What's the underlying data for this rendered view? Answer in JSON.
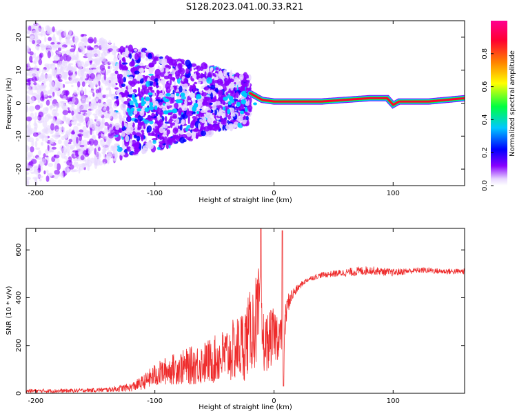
{
  "title": "S128.2023.041.00.33.R21",
  "colors": {
    "snr_line": "#ee2a2a",
    "axis": "#000000",
    "band_center": "#e8283a",
    "band_edge": "#00e060"
  },
  "chart_data": [
    {
      "type": "heatmap",
      "xlabel": "Height of straight line (km)",
      "ylabel": "Frequency (Hz)",
      "xlim": [
        -208,
        160
      ],
      "ylim": [
        -25,
        25
      ],
      "xticks": [
        -200,
        -100,
        0,
        100
      ],
      "yticks": [
        -20,
        -10,
        0,
        10,
        20
      ],
      "grid": false,
      "colorbar": {
        "label": "Normalized spectral amplitude",
        "range": [
          0,
          1
        ],
        "ticks": [
          0.0,
          0.2,
          0.4,
          0.6,
          0.8
        ],
        "colormap": [
          "#ffffff",
          "#e8d8ff",
          "#8800ff",
          "#0000ff",
          "#00c8ff",
          "#00ff40",
          "#ffff00",
          "#ff8000",
          "#ff0030",
          "#ff0090"
        ]
      },
      "carrier_line": {
        "x": [
          -20,
          -10,
          0,
          10,
          40,
          80,
          95,
          100,
          105,
          130,
          160
        ],
        "frequency": [
          3,
          1,
          0.5,
          0.5,
          0.5,
          1.5,
          1.5,
          -0.5,
          0.5,
          0.5,
          1.5
        ]
      },
      "noise_region": {
        "x_range": [
          -208,
          -20
        ],
        "frequency_spread_far": [
          -25,
          25
        ],
        "frequency_spread_near": [
          -6,
          8
        ]
      }
    },
    {
      "type": "line",
      "xlabel": "Height of straight line (km)",
      "ylabel": "SNR (10 * v/v)",
      "xlim": [
        -208,
        160
      ],
      "ylim": [
        0,
        690
      ],
      "xticks": [
        -200,
        -100,
        0,
        100
      ],
      "yticks": [
        0,
        200,
        400,
        600
      ],
      "grid": false,
      "series": [
        {
          "x": [
            -208,
            -180,
            -160,
            -140,
            -120,
            -110,
            -100,
            -90,
            -80,
            -70,
            -60,
            -50,
            -40,
            -30,
            -25,
            -20,
            -15,
            -12,
            -10,
            -8,
            -5,
            0,
            5,
            8,
            10,
            12,
            15,
            20,
            25,
            30,
            40,
            50,
            60,
            70,
            80,
            90,
            100,
            110,
            120,
            130,
            140,
            150,
            160
          ],
          "y": [
            10,
            10,
            12,
            15,
            25,
            45,
            75,
            95,
            105,
            115,
            125,
            140,
            160,
            190,
            210,
            260,
            300,
            340,
            250,
            200,
            220,
            240,
            250,
            200,
            330,
            380,
            410,
            440,
            465,
            480,
            495,
            500,
            505,
            510,
            515,
            510,
            505,
            510,
            515,
            515,
            510,
            510,
            510
          ],
          "amp": [
            8,
            8,
            8,
            10,
            18,
            30,
            50,
            60,
            70,
            80,
            90,
            100,
            120,
            140,
            160,
            170,
            200,
            200,
            160,
            120,
            120,
            120,
            100,
            90,
            60,
            40,
            30,
            15,
            12,
            10,
            12,
            14,
            16,
            20,
            18,
            16,
            16,
            14,
            12,
            12,
            12,
            12,
            12
          ]
        }
      ],
      "spikes": [
        {
          "x": -11,
          "y": 690
        },
        {
          "x": 7,
          "y": 680
        },
        {
          "x": 8,
          "y": 30
        }
      ]
    }
  ]
}
